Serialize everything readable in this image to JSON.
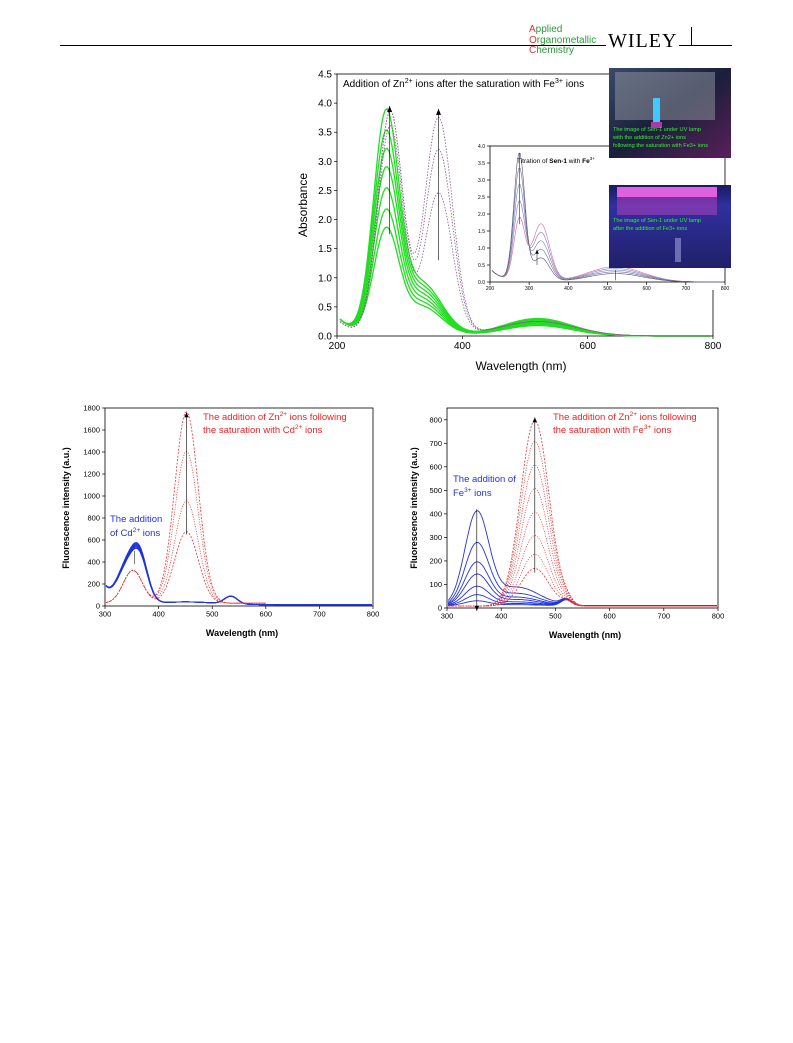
{
  "header": {
    "journal_lines": [
      {
        "lead": "A",
        "rest": "pplied"
      },
      {
        "lead": "O",
        "rest": "rganometallic"
      },
      {
        "lead": "C",
        "rest": "hemistry"
      }
    ],
    "publisher": "WILEY",
    "page_number": "",
    "colors": {
      "journal": "#2a9a3a",
      "initials": "#d33333"
    }
  },
  "chart_data": [
    {
      "type": "line",
      "id": "uv-vis",
      "title_parts": [
        "Addition of Zn",
        "2+",
        " ions after the saturation with Fe",
        "3+",
        " ions"
      ],
      "xlabel": "Wavelength (nm)",
      "ylabel": "Absorbance",
      "xlim": [
        200,
        800
      ],
      "ylim": [
        0,
        4.5
      ],
      "xticks": [
        "200",
        "400",
        "600",
        "800"
      ],
      "yticks": [
        "0.0",
        "0.5",
        "1.0",
        "1.5",
        "2.0",
        "2.5",
        "3.0",
        "3.5",
        "4.0",
        "4.5"
      ],
      "series_color": "#22dd22",
      "peak1_heights": [
        1.75,
        2.05,
        2.4,
        2.75,
        3.05,
        3.35,
        3.7
      ],
      "peak1_wavelength": 278,
      "trace_color": "#8a5a8a",
      "trace_p1": [
        3.6,
        3.85,
        3.85
      ],
      "trace_p2": [
        2.45,
        3.2,
        3.75
      ],
      "trace_p2_wavelength": 362,
      "inset_chart": {
        "title_parts": [
          "Titration of ",
          "Sen-1",
          " with ",
          "Fe",
          "3+"
        ],
        "xlim": [
          200,
          800
        ],
        "ylim": [
          0,
          4.0
        ],
        "xticks": [
          "200",
          "300",
          "400",
          "500",
          "600",
          "700",
          "800"
        ],
        "yticks": [
          "0.0",
          "0.5",
          "1.0",
          "1.5",
          "2.0",
          "2.5",
          "3.0",
          "3.5",
          "4.0"
        ],
        "peak_heights": [
          1.8,
          2.3,
          2.8,
          3.3,
          3.75
        ]
      },
      "photo_captions": [
        {
          "lines": [
            "The image of Sen-1 under UV lamp",
            "with the addition of  Zn2+ ions",
            "following the saturation with Fe3+ ions"
          ]
        },
        {
          "lines": [
            "The image of Sen-1 under UV lamp",
            "after the addition of Fe3+ ions"
          ]
        }
      ]
    },
    {
      "type": "line",
      "id": "fluor-cd",
      "xlabel": "Wavelength (nm)",
      "ylabel": "Fluorescence intensity (a.u.)",
      "xlim": [
        300,
        800
      ],
      "ylim": [
        0,
        1800
      ],
      "xticks": [
        "300",
        "400",
        "500",
        "600",
        "700",
        "800"
      ],
      "yticks": [
        "0",
        "200",
        "400",
        "600",
        "800",
        "1000",
        "1200",
        "1400",
        "1600",
        "1800"
      ],
      "annotation_red_parts": [
        "The addition of Zn",
        "2+",
        " ions following",
        "the saturation with Cd",
        "2+",
        " ions"
      ],
      "annotation_blue_parts": [
        "The addition",
        "of Cd",
        "2+",
        " ions"
      ],
      "red_peaks": [
        650,
        930,
        1380,
        1740
      ],
      "blue_level": 440
    },
    {
      "type": "line",
      "id": "fluor-fe",
      "xlabel": "Wavelength (nm)",
      "ylabel": "Fluorescence intensity (a.u.)",
      "xlim": [
        300,
        800
      ],
      "ylim": [
        0,
        850
      ],
      "xticks": [
        "300",
        "400",
        "500",
        "600",
        "700",
        "800"
      ],
      "yticks": [
        "0",
        "100",
        "200",
        "300",
        "400",
        "500",
        "600",
        "700",
        "800"
      ],
      "annotation_red_parts": [
        "The addition of Zn",
        "2+",
        " ions following",
        "the saturation with Fe",
        "3+",
        " ions"
      ],
      "annotation_blue_parts": [
        "The addition of",
        "Fe",
        "3+",
        " ions"
      ],
      "red_peaks": [
        160,
        220,
        300,
        400,
        500,
        600,
        700,
        790
      ],
      "blue_peaks": [
        20,
        45,
        80,
        130,
        180,
        260,
        390
      ]
    }
  ]
}
